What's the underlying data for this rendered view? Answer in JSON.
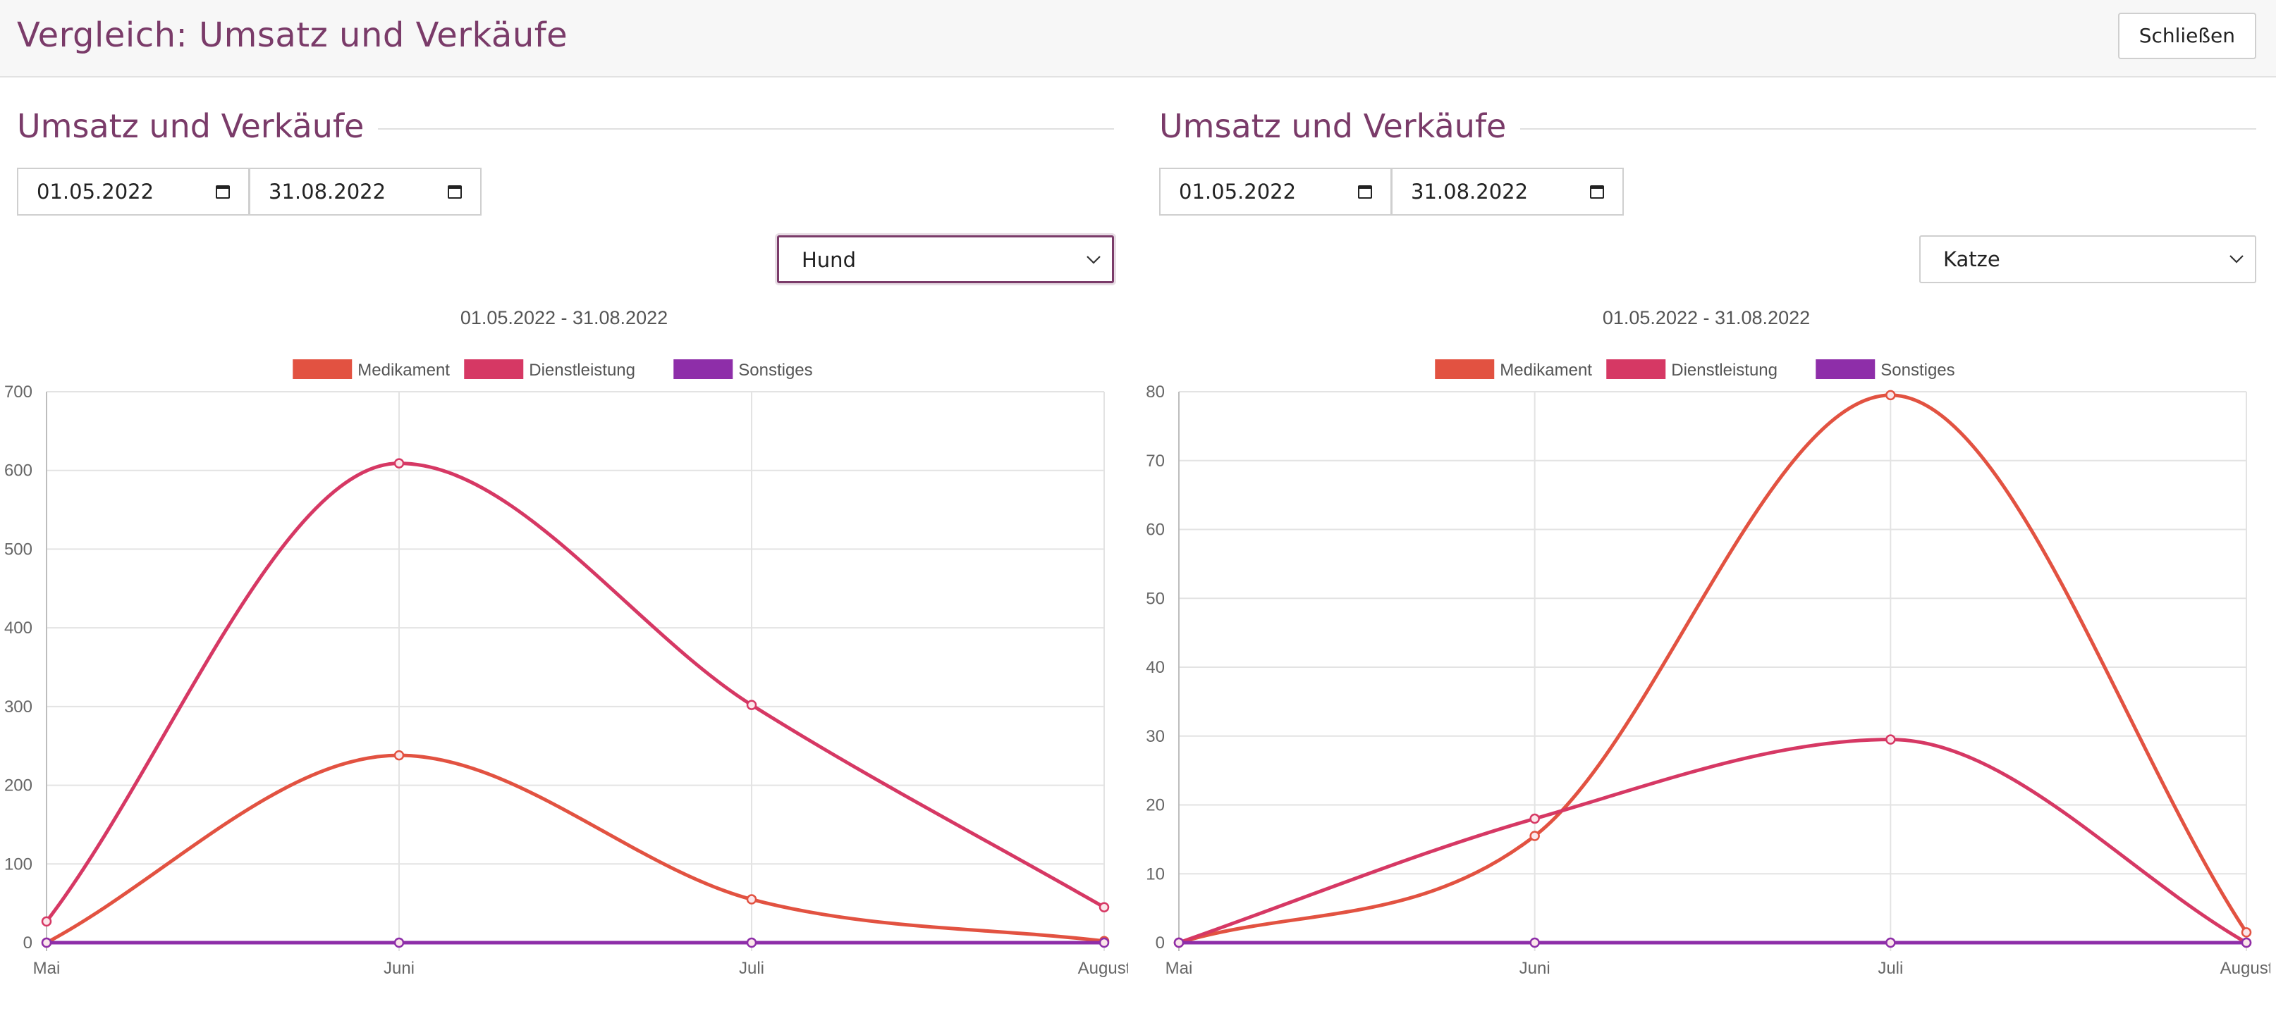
{
  "header": {
    "title": "Vergleich: Umsatz und Verkäufe",
    "close_label": "Schließen"
  },
  "colors": {
    "accent": "#7a3b69",
    "medikament": "#e25241",
    "dienstleistung": "#d63864",
    "sonstiges": "#8e2ea9"
  },
  "panels": [
    {
      "section_title": "Umsatz und Verkäufe",
      "date_from": "01.05.2022",
      "date_to": "31.08.2022",
      "species": "Hund",
      "species_focused": true
    },
    {
      "section_title": "Umsatz und Verkäufe",
      "date_from": "01.05.2022",
      "date_to": "31.08.2022",
      "species": "Katze",
      "species_focused": false
    }
  ],
  "chart_data": [
    {
      "type": "line",
      "title": "01.05.2022 - 31.08.2022",
      "categories": [
        "Mai",
        "Juni",
        "Juli",
        "August"
      ],
      "ylim": [
        0,
        700
      ],
      "yticks": [
        0,
        100,
        200,
        300,
        400,
        500,
        600,
        700
      ],
      "grid": true,
      "legend_position": "top-center",
      "series": [
        {
          "name": "Medikament",
          "values": [
            0,
            238,
            55,
            2
          ],
          "color": "#e25241"
        },
        {
          "name": "Dienstleistung",
          "values": [
            27,
            609,
            302,
            45
          ],
          "color": "#d63864"
        },
        {
          "name": "Sonstiges",
          "values": [
            0,
            0,
            0,
            0
          ],
          "color": "#8e2ea9"
        }
      ]
    },
    {
      "type": "line",
      "title": "01.05.2022 - 31.08.2022",
      "categories": [
        "Mai",
        "Juni",
        "Juli",
        "August"
      ],
      "ylim": [
        0,
        80
      ],
      "yticks": [
        0,
        10,
        20,
        30,
        40,
        50,
        60,
        70,
        80
      ],
      "grid": true,
      "legend_position": "top-center",
      "series": [
        {
          "name": "Medikament",
          "values": [
            0,
            15.5,
            79.5,
            1.5
          ],
          "color": "#e25241"
        },
        {
          "name": "Dienstleistung",
          "values": [
            0,
            18,
            29.5,
            0
          ],
          "color": "#d63864"
        },
        {
          "name": "Sonstiges",
          "values": [
            0,
            0,
            0,
            0
          ],
          "color": "#8e2ea9"
        }
      ]
    }
  ]
}
